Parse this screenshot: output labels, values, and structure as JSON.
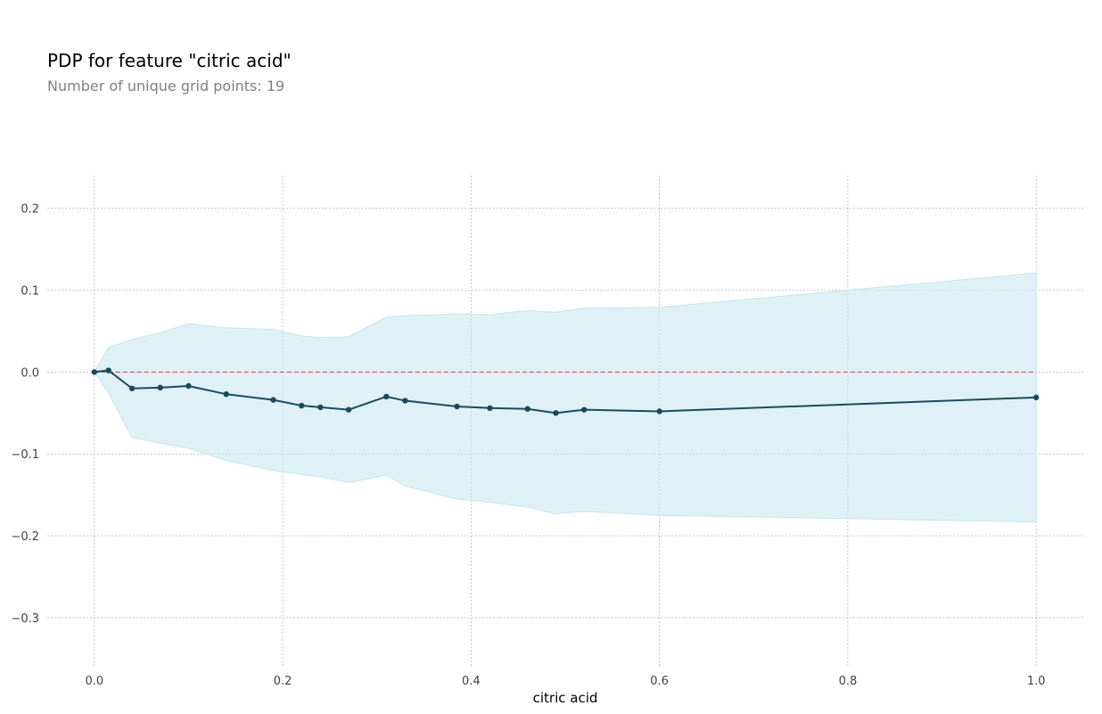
{
  "header": {
    "title": "PDP for feature \"citric acid\"",
    "subtitle": "Number of unique grid points: 19"
  },
  "colors": {
    "line": "#1a4a5a",
    "band": "#c9e7f1",
    "baseline": "#d9534f",
    "grid": "#b0b0b0"
  },
  "chart_data": {
    "type": "line",
    "title": "PDP for feature \"citric acid\"",
    "subtitle": "Number of unique grid points: 19",
    "xlabel": "citric acid",
    "ylabel": "",
    "xlim": [
      -0.05,
      1.05
    ],
    "ylim": [
      -0.36,
      0.24
    ],
    "grid": true,
    "x_ticks": [
      0.0,
      0.2,
      0.4,
      0.6,
      0.8,
      1.0
    ],
    "x_tick_labels": [
      "0.0",
      "0.2",
      "0.4",
      "0.6",
      "0.8",
      "1.0"
    ],
    "y_ticks": [
      0.2,
      0.1,
      0.0,
      -0.1,
      -0.2,
      -0.3
    ],
    "y_tick_labels": [
      "0.2",
      "0.1",
      "0.0",
      "−0.1",
      "−0.2",
      "−0.3"
    ],
    "baseline": 0.0,
    "x": [
      0.0,
      0.015,
      0.04,
      0.07,
      0.1,
      0.14,
      0.19,
      0.22,
      0.24,
      0.27,
      0.31,
      0.33,
      0.385,
      0.42,
      0.46,
      0.49,
      0.52,
      0.6,
      1.0
    ],
    "series": [
      {
        "values": [
          0.0,
          0.002,
          -0.02,
          -0.019,
          -0.017,
          -0.027,
          -0.034,
          -0.041,
          -0.043,
          -0.046,
          -0.03,
          -0.035,
          -0.042,
          -0.044,
          -0.045,
          -0.05,
          -0.046,
          -0.048,
          -0.031
        ],
        "upper": [
          0.0,
          0.03,
          0.04,
          0.048,
          0.059,
          0.054,
          0.052,
          0.044,
          0.042,
          0.043,
          0.067,
          0.069,
          0.071,
          0.07,
          0.075,
          0.073,
          0.078,
          0.079,
          0.121
        ],
        "lower": [
          0.0,
          -0.025,
          -0.08,
          -0.087,
          -0.093,
          -0.108,
          -0.12,
          -0.125,
          -0.128,
          -0.135,
          -0.126,
          -0.139,
          -0.155,
          -0.159,
          -0.165,
          -0.173,
          -0.17,
          -0.175,
          -0.183
        ]
      }
    ]
  }
}
